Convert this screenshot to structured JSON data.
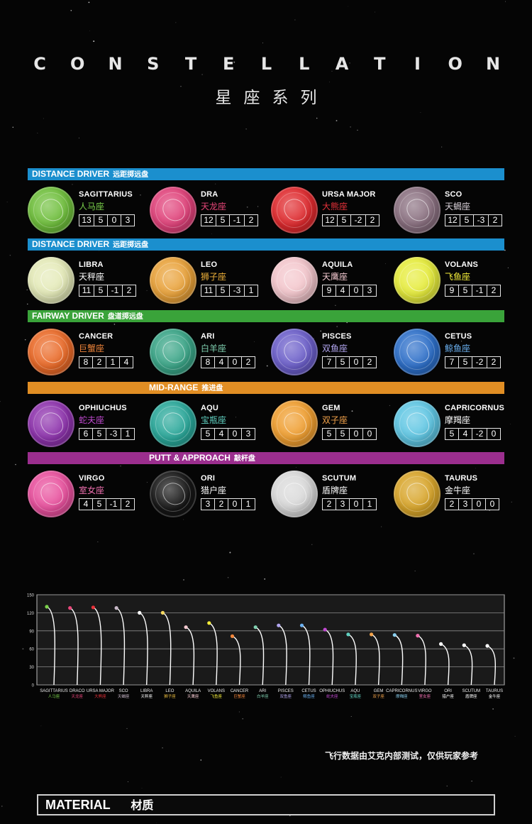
{
  "header": {
    "title_en_letters": [
      "C",
      "O",
      "N",
      "S",
      "T",
      "E",
      "L",
      "L",
      "A",
      "T",
      "I",
      "O",
      "N"
    ],
    "title_cn": "星座系列"
  },
  "sections": [
    {
      "label_en": "DISTANCE DRIVER",
      "label_cn": "远距掷远盘",
      "color": "#1b8fce",
      "align": "left",
      "discs": [
        {
          "name": "SAGITTARIUS",
          "cn": "人马座",
          "cn_color": "#7ad14a",
          "color": "#6fbf3c",
          "nums": [
            "13",
            "5",
            "0",
            "3"
          ]
        },
        {
          "name": "DRA",
          "cn": "天龙座",
          "cn_color": "#e84679",
          "color": "#e0427a",
          "nums": [
            "12",
            "5",
            "-1",
            "2"
          ]
        },
        {
          "name": "URSA MAJOR",
          "cn": "大熊座",
          "cn_color": "#e8323a",
          "color": "#df2a2e",
          "nums": [
            "12",
            "5",
            "-2",
            "2"
          ]
        },
        {
          "name": "SCO",
          "cn": "天蝎座",
          "cn_color": "#d8d0d8",
          "color": "#8a7080",
          "nums": [
            "12",
            "5",
            "-3",
            "2"
          ]
        }
      ]
    },
    {
      "label_en": "DISTANCE DRIVER",
      "label_cn": "远距掷远盘",
      "color": "#1b8fce",
      "align": "left",
      "discs": [
        {
          "name": "LIBRA",
          "cn": "天秤座",
          "cn_color": "#ffffff",
          "color": "#e4eab8",
          "nums": [
            "11",
            "5",
            "-1",
            "2"
          ]
        },
        {
          "name": "LEO",
          "cn": "狮子座",
          "cn_color": "#f0b23a",
          "color": "#e9a23a",
          "nums": [
            "11",
            "5",
            "-3",
            "1"
          ]
        },
        {
          "name": "AQUILA",
          "cn": "天鹰座",
          "cn_color": "#f2c8cf",
          "color": "#f3c6cc",
          "nums": [
            "9",
            "4",
            "0",
            "3"
          ]
        },
        {
          "name": "VOLANS",
          "cn": "飞鱼座",
          "cn_color": "#f5ee3a",
          "color": "#e6ec3c",
          "nums": [
            "9",
            "5",
            "-1",
            "2"
          ]
        }
      ]
    },
    {
      "label_en": "FAIRWAY DRIVER",
      "label_cn": "盘道掷远盘",
      "color": "#3aa33a",
      "align": "left",
      "discs": [
        {
          "name": "CANCER",
          "cn": "巨蟹座",
          "cn_color": "#f0853a",
          "color": "#ea6a28",
          "nums": [
            "8",
            "2",
            "1",
            "4"
          ]
        },
        {
          "name": "ARI",
          "cn": "白羊座",
          "cn_color": "#7fd0b0",
          "color": "#3aa587",
          "nums": [
            "8",
            "4",
            "0",
            "2"
          ]
        },
        {
          "name": "PISCES",
          "cn": "双鱼座",
          "cn_color": "#b2a6f0",
          "color": "#6b5ec9",
          "nums": [
            "7",
            "5",
            "0",
            "2"
          ]
        },
        {
          "name": "CETUS",
          "cn": "鲸鱼座",
          "cn_color": "#6ab0f0",
          "color": "#2d6fc9",
          "nums": [
            "7",
            "5",
            "-2",
            "2"
          ]
        }
      ]
    },
    {
      "label_en": "MID-RANGE",
      "label_cn": "推进盘",
      "color": "#e18e24",
      "align": "center",
      "discs": [
        {
          "name": "OPHIUCHUS",
          "cn": "蛇夫座",
          "cn_color": "#c04ad0",
          "color": "#8e33ad",
          "nums": [
            "6",
            "5",
            "-3",
            "1"
          ]
        },
        {
          "name": "AQU",
          "cn": "宝瓶座",
          "cn_color": "#60d0c0",
          "color": "#2aa89a",
          "nums": [
            "5",
            "4",
            "0",
            "3"
          ]
        },
        {
          "name": "GEM",
          "cn": "双子座",
          "cn_color": "#f2a24a",
          "color": "#ef9e30",
          "nums": [
            "5",
            "5",
            "0",
            "0"
          ]
        },
        {
          "name": "CAPRICORNUS",
          "cn": "摩羯座",
          "cn_color": "#ffffff",
          "color": "#5fc6e3",
          "nums": [
            "5",
            "4",
            "-2",
            "0"
          ]
        }
      ]
    },
    {
      "label_en": "PUTT & APPROACH",
      "label_cn": "敲杆盘",
      "color": "#9b2e8e",
      "align": "center",
      "discs": [
        {
          "name": "VIRGO",
          "cn": "室女座",
          "cn_color": "#f070b0",
          "color": "#e8509d",
          "nums": [
            "4",
            "5",
            "-1",
            "2"
          ]
        },
        {
          "name": "ORI",
          "cn": "猎户座",
          "cn_color": "#ffffff",
          "color": "#161616",
          "nums": [
            "3",
            "2",
            "0",
            "1"
          ]
        },
        {
          "name": "SCUTUM",
          "cn": "盾牌座",
          "cn_color": "#ffffff",
          "color": "#d9d9d9",
          "nums": [
            "2",
            "3",
            "0",
            "1"
          ]
        },
        {
          "name": "TAURUS",
          "cn": "金牛座",
          "cn_color": "#ffffff",
          "color": "#d8a52a",
          "nums": [
            "2",
            "3",
            "0",
            "0"
          ]
        }
      ]
    }
  ],
  "chart_data": {
    "type": "line",
    "title": "",
    "ylim": [
      0,
      150
    ],
    "yticks": [
      "0",
      "30",
      "60",
      "90",
      "120",
      "150"
    ],
    "categories": [
      "SAGITTARIUS",
      "DRACO",
      "URSA MAJOR",
      "SCO",
      "LIBRA",
      "LEO",
      "AQUILA",
      "VOLANS",
      "CANCER",
      "ARI",
      "PISCES",
      "CETUS",
      "OPHIUCHUS",
      "AQU",
      "GEM",
      "CAPRICORNUS",
      "VIRGO",
      "ORI",
      "SCUTUM",
      "TAURUS"
    ],
    "categories_cn": [
      "人马座",
      "天龙座",
      "大熊座",
      "天蝎座",
      "天秤座",
      "狮子座",
      "天鹰座",
      "飞鱼座",
      "巨蟹座",
      "白羊座",
      "双鱼座",
      "鲸鱼座",
      "蛇夫座",
      "宝瓶座",
      "双子座",
      "摩羯座",
      "室女座",
      "猎户座",
      "盾牌座",
      "金牛座"
    ],
    "peaks": [
      130,
      128,
      129,
      128,
      120,
      120,
      96,
      103,
      81,
      96,
      99,
      99,
      92,
      84,
      84,
      83,
      82,
      68,
      66,
      65
    ],
    "colors": [
      "#7ad14a",
      "#e84679",
      "#e8323a",
      "#c8b8c8",
      "#ffffff",
      "#f5d860",
      "#f2c8cf",
      "#f5ee3a",
      "#f0853a",
      "#7fd0b0",
      "#b2a6f0",
      "#6ab0f0",
      "#c04ad0",
      "#60d0c0",
      "#f2a24a",
      "#8ad0f0",
      "#f070b0",
      "#ffffff",
      "#ffffff",
      "#ffffff"
    ],
    "label_colors": [
      "#7ad14a",
      "#e84679",
      "#e8323a",
      "#c8b8c8",
      "#ffffff",
      "#f0c040",
      "#f2c8cf",
      "#f5ee3a",
      "#f0853a",
      "#7fd0b0",
      "#b2a6f0",
      "#6ab0f0",
      "#c04ad0",
      "#60d0c0",
      "#f2a24a",
      "#8ad0f0",
      "#f070b0",
      "#ffffff",
      "#ffffff",
      "#ffffff"
    ],
    "grid": true
  },
  "note": "飞行数据由艾克内部测试，仅供玩家参考",
  "material": {
    "en": "MATERIAL",
    "cn": "材质"
  }
}
